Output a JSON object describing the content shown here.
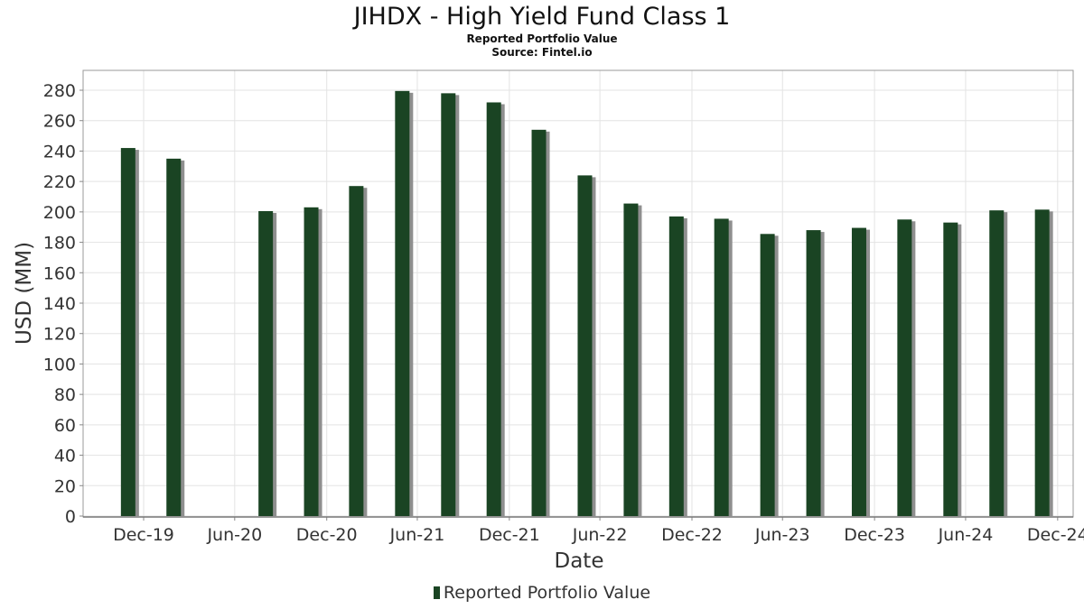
{
  "header": {
    "title": "JIHDX - High Yield Fund Class 1",
    "subtitle": "Reported Portfolio Value",
    "source": "Source: Fintel.io"
  },
  "legend": {
    "label": "Reported Portfolio Value",
    "color": "#1a4423"
  },
  "chart_data": {
    "type": "bar",
    "title": "JIHDX - High Yield Fund Class 1",
    "subtitle": "Reported Portfolio Value",
    "xlabel": "Date",
    "ylabel": "USD (MM)",
    "ylim": [
      0,
      290
    ],
    "yticks": [
      0,
      20,
      40,
      60,
      80,
      100,
      120,
      140,
      160,
      180,
      200,
      220,
      240,
      260,
      280
    ],
    "xlim": [
      "2019-09-01",
      "2025-01-31"
    ],
    "xticks": [
      {
        "label": "Dec-19",
        "date": "2019-12-31"
      },
      {
        "label": "Jun-20",
        "date": "2020-06-30"
      },
      {
        "label": "Dec-20",
        "date": "2020-12-31"
      },
      {
        "label": "Jun-21",
        "date": "2021-06-30"
      },
      {
        "label": "Dec-21",
        "date": "2021-12-31"
      },
      {
        "label": "Jun-22",
        "date": "2022-06-30"
      },
      {
        "label": "Dec-22",
        "date": "2022-12-31"
      },
      {
        "label": "Jun-23",
        "date": "2023-06-30"
      },
      {
        "label": "Dec-23",
        "date": "2023-12-31"
      },
      {
        "label": "Jun-24",
        "date": "2024-06-30"
      },
      {
        "label": "Dec-24",
        "date": "2024-12-31"
      }
    ],
    "grid": true,
    "legend_position": "bottom",
    "series": [
      {
        "name": "Reported Portfolio Value",
        "color": "#1a4423",
        "points": [
          {
            "date": "2019-11-30",
            "value": 242
          },
          {
            "date": "2020-02-29",
            "value": 235
          },
          {
            "date": "2020-08-31",
            "value": 200.5
          },
          {
            "date": "2020-11-30",
            "value": 203
          },
          {
            "date": "2021-02-28",
            "value": 217
          },
          {
            "date": "2021-05-31",
            "value": 279.5
          },
          {
            "date": "2021-08-31",
            "value": 278
          },
          {
            "date": "2021-11-30",
            "value": 272
          },
          {
            "date": "2022-02-28",
            "value": 254
          },
          {
            "date": "2022-05-31",
            "value": 224
          },
          {
            "date": "2022-08-31",
            "value": 205.5
          },
          {
            "date": "2022-11-30",
            "value": 197
          },
          {
            "date": "2023-02-28",
            "value": 195.5
          },
          {
            "date": "2023-05-31",
            "value": 185.5
          },
          {
            "date": "2023-08-31",
            "value": 188
          },
          {
            "date": "2023-11-30",
            "value": 189.5
          },
          {
            "date": "2024-02-29",
            "value": 195
          },
          {
            "date": "2024-05-31",
            "value": 193
          },
          {
            "date": "2024-08-31",
            "value": 201
          },
          {
            "date": "2024-11-30",
            "value": 201.5
          }
        ]
      }
    ]
  }
}
